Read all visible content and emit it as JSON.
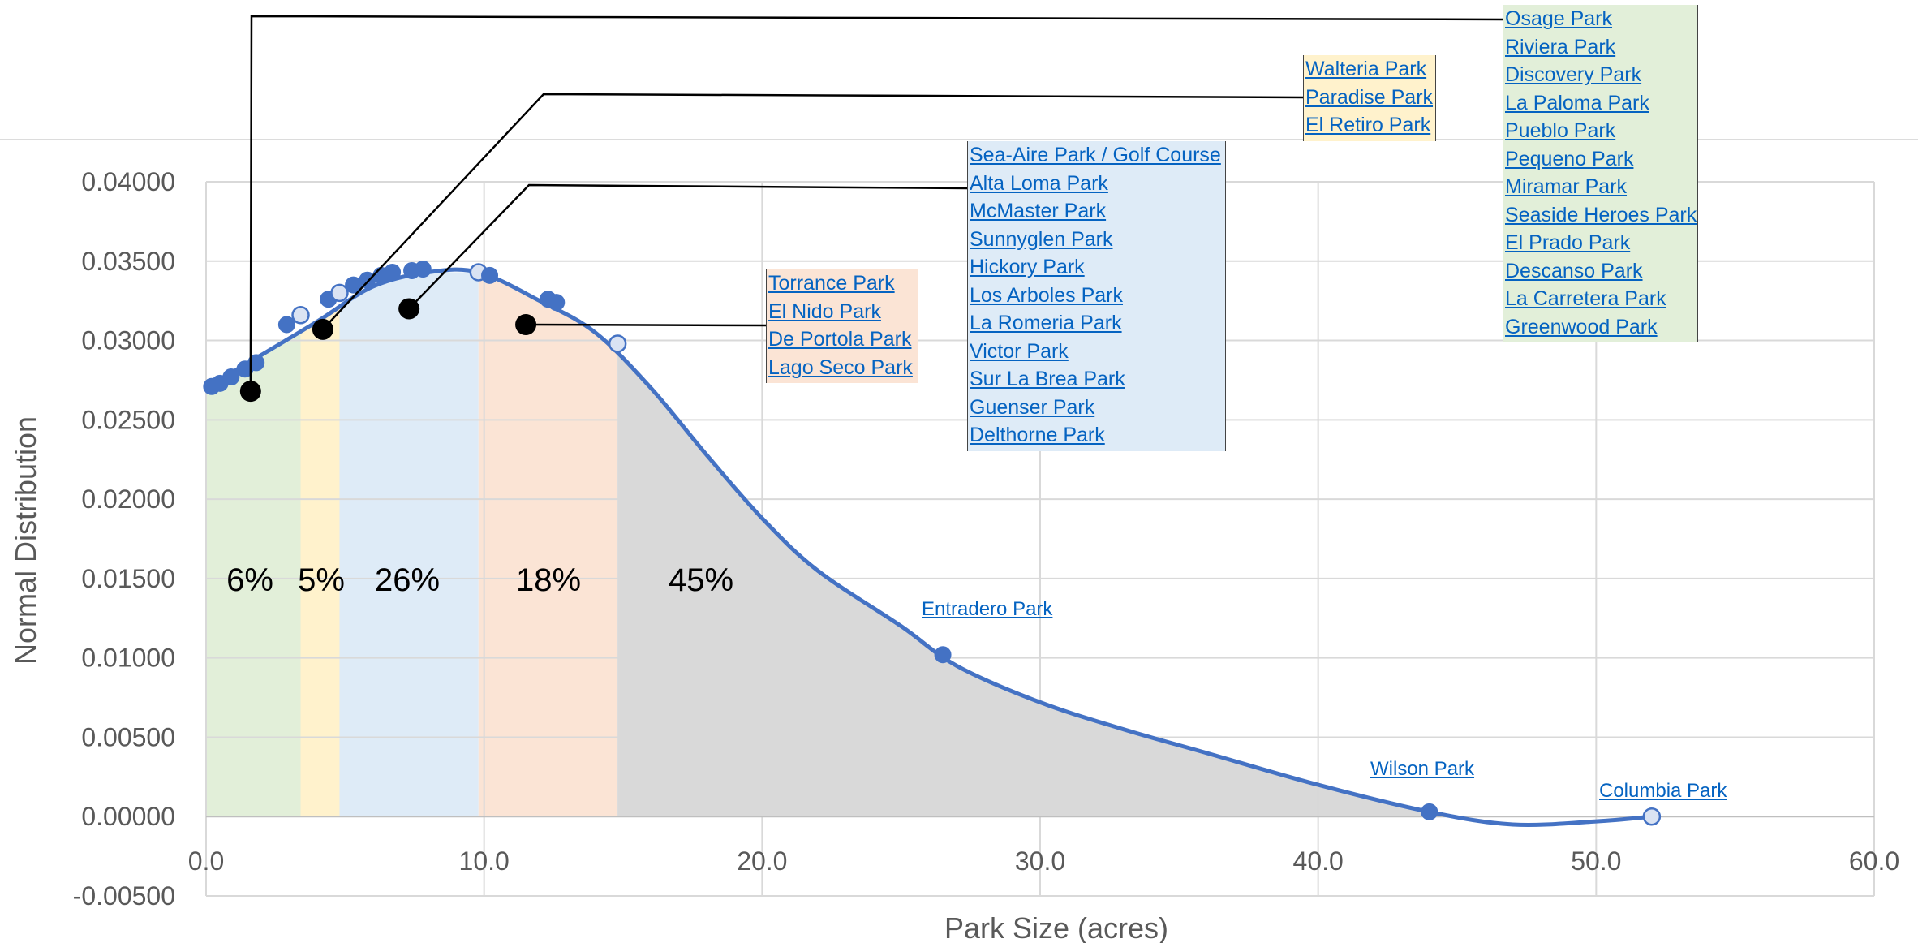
{
  "chart_data": {
    "type": "area",
    "xlabel": "Park Size (acres)",
    "ylabel": "Normal Distribution",
    "xlim": [
      0,
      60
    ],
    "ylim": [
      -0.005,
      0.04
    ],
    "x_ticks": [
      "0.0",
      "10.0",
      "20.0",
      "30.0",
      "40.0",
      "50.0",
      "60.0"
    ],
    "y_ticks": [
      "0.04000",
      "0.03500",
      "0.03000",
      "0.02500",
      "0.02000",
      "0.01500",
      "0.01000",
      "0.00500",
      "0.00000",
      "-0.00500"
    ],
    "grid": true,
    "curve": [
      [
        0,
        0.027
      ],
      [
        2,
        0.0291
      ],
      [
        4,
        0.0312
      ],
      [
        6,
        0.0334
      ],
      [
        8,
        0.0343
      ],
      [
        9.8,
        0.0343
      ],
      [
        12,
        0.0325
      ],
      [
        14,
        0.0305
      ],
      [
        16,
        0.027
      ],
      [
        18,
        0.0228
      ],
      [
        20,
        0.0188
      ],
      [
        22,
        0.0155
      ],
      [
        25,
        0.012
      ],
      [
        27,
        0.0095
      ],
      [
        30,
        0.0072
      ],
      [
        33,
        0.0055
      ],
      [
        36,
        0.004
      ],
      [
        40,
        0.002
      ],
      [
        44,
        0.0003
      ],
      [
        47,
        -0.0005
      ],
      [
        50,
        -0.0003
      ],
      [
        52,
        0.0
      ]
    ],
    "regions": [
      {
        "from": 0,
        "to": 3.4,
        "percent": "6%",
        "color": "#e2efd9"
      },
      {
        "from": 3.4,
        "to": 4.8,
        "percent": "5%",
        "color": "#fff2cc"
      },
      {
        "from": 4.8,
        "to": 9.8,
        "percent": "26%",
        "color": "#deebf7"
      },
      {
        "from": 9.8,
        "to": 14.8,
        "percent": "18%",
        "color": "#fbe4d5"
      },
      {
        "from": 14.8,
        "to": 44,
        "percent": "45%",
        "color": "#d9d9d9"
      }
    ],
    "points": [
      {
        "x": 0.2,
        "y": 0.0271,
        "hollow": false
      },
      {
        "x": 0.5,
        "y": 0.0273,
        "hollow": false
      },
      {
        "x": 0.9,
        "y": 0.0277,
        "hollow": false
      },
      {
        "x": 1.4,
        "y": 0.0282,
        "hollow": false
      },
      {
        "x": 1.8,
        "y": 0.0286,
        "hollow": false
      },
      {
        "x": 2.9,
        "y": 0.031,
        "hollow": false
      },
      {
        "x": 3.4,
        "y": 0.0316,
        "hollow": true
      },
      {
        "x": 4.4,
        "y": 0.0326,
        "hollow": false
      },
      {
        "x": 4.8,
        "y": 0.033,
        "hollow": true
      },
      {
        "x": 5.3,
        "y": 0.0335,
        "hollow": false
      },
      {
        "x": 5.8,
        "y": 0.0338,
        "hollow": false
      },
      {
        "x": 6.3,
        "y": 0.0341,
        "hollow": false
      },
      {
        "x": 6.7,
        "y": 0.0343,
        "hollow": false
      },
      {
        "x": 7.4,
        "y": 0.0344,
        "hollow": false
      },
      {
        "x": 7.8,
        "y": 0.0345,
        "hollow": false
      },
      {
        "x": 9.8,
        "y": 0.0343,
        "hollow": true
      },
      {
        "x": 10.2,
        "y": 0.0341,
        "hollow": false
      },
      {
        "x": 12.3,
        "y": 0.0326,
        "hollow": false
      },
      {
        "x": 12.6,
        "y": 0.0324,
        "hollow": false
      },
      {
        "x": 14.8,
        "y": 0.0298,
        "hollow": true
      },
      {
        "x": 26.5,
        "y": 0.0102,
        "hollow": false
      },
      {
        "x": 44.0,
        "y": 0.0003,
        "hollow": false
      },
      {
        "x": 52.0,
        "y": 0.0,
        "hollow": true
      }
    ],
    "markers": [
      {
        "x": 1.6,
        "y": 0.0268
      },
      {
        "x": 4.2,
        "y": 0.0307
      },
      {
        "x": 7.3,
        "y": 0.032
      },
      {
        "x": 11.5,
        "y": 0.031
      }
    ],
    "colors": {
      "curve": "#4472c4",
      "hollow_fill": "#dae3f3",
      "grid": "#d9d9d9",
      "axis_text": "#595959",
      "link": "#0563c1"
    }
  },
  "callouts": [
    {
      "color": "#e2efd9",
      "parks": [
        "Osage Park",
        "Riviera Park",
        "Discovery Park",
        "La Paloma Park",
        "Pueblo Park",
        "Pequeno Park",
        "Miramar Park",
        "Seaside Heroes Park",
        "El Prado Park",
        "Descanso Park",
        "La Carretera Park",
        "Greenwood Park"
      ]
    },
    {
      "color": "#fff2cc",
      "parks": [
        "Walteria Park",
        "Paradise Park",
        "El Retiro Park"
      ]
    },
    {
      "color": "#deebf7",
      "parks": [
        "Sea-Aire Park / Golf Course",
        "Alta Loma Park",
        "McMaster Park",
        "Sunnyglen Park",
        "Hickory Park",
        "Los Arboles Park",
        "La Romeria Park",
        "Victor Park",
        "Sur La Brea Park",
        "Guenser Park",
        "Delthorne Park"
      ]
    },
    {
      "color": "#fbe4d5",
      "parks": [
        "Torrance Park",
        "El Nido Park",
        "De Portola Park",
        "Lago Seco Park"
      ]
    }
  ],
  "point_labels": [
    "Entradero Park",
    "Wilson Park",
    "Columbia Park"
  ]
}
